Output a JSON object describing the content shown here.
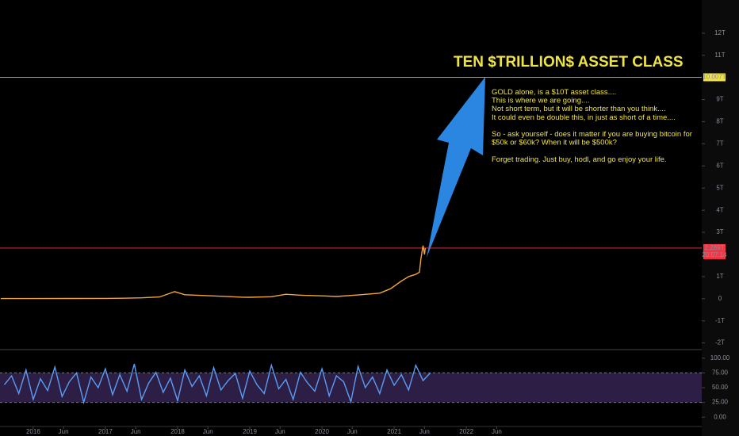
{
  "chart_data": [
    {
      "type": "line",
      "annotation": {
        "title": "TEN $TRILLION$ ASSET CLASS",
        "paragraphs": [
          [
            "GOLD alone, is a $10T asset class....",
            "This is where we are going....",
            "Not short term, but it will be shorter than you think....",
            "It could even be double this, in just as short of a time...."
          ],
          [
            "So - ask yourself - does it matter if you are buying bitcoin for",
            "$50k or $60k? When it will be $500k?"
          ],
          [
            "Forget trading. Just buy, hodl, and go enjoy your life."
          ]
        ]
      },
      "x": [
        2015.55,
        2016.0,
        2016.5,
        2017.0,
        2017.25,
        2017.5,
        2017.75,
        2017.96,
        2018.1,
        2018.3,
        2018.6,
        2018.9,
        2019.0,
        2019.3,
        2019.5,
        2019.75,
        2020.0,
        2020.2,
        2020.5,
        2020.8,
        2020.95,
        2021.1,
        2021.2,
        2021.3,
        2021.35,
        2021.37,
        2021.4,
        2021.42,
        2021.43
      ],
      "values": [
        0.006,
        0.007,
        0.011,
        0.016,
        0.02,
        0.04,
        0.08,
        0.32,
        0.18,
        0.15,
        0.11,
        0.07,
        0.065,
        0.09,
        0.2,
        0.15,
        0.13,
        0.1,
        0.17,
        0.25,
        0.45,
        0.8,
        1.0,
        1.1,
        1.2,
        1.8,
        2.4,
        2.0,
        2.289
      ],
      "color": "#f0a63a",
      "xlim": [
        2015.54,
        2025.26
      ],
      "xticks": [
        2016,
        {
          "value": 2016.42,
          "label": "Jun"
        },
        2017,
        {
          "value": 2017.42,
          "label": "Jun"
        },
        2018,
        {
          "value": 2018.42,
          "label": "Jun"
        },
        2019,
        {
          "value": 2019.42,
          "label": "Jun"
        },
        2020,
        {
          "value": 2020.42,
          "label": "Jun"
        },
        2021,
        {
          "value": 2021.42,
          "label": "Jun"
        },
        2022,
        {
          "value": 2022.42,
          "label": "Jun"
        }
      ],
      "ylim": [
        -2.3,
        13.5
      ],
      "yticks": [
        {
          "value": -2,
          "label": "-2T"
        },
        {
          "value": -1,
          "label": "-1T"
        },
        0,
        {
          "value": 1,
          "label": "1T"
        },
        {
          "value": 3,
          "label": "3T"
        },
        {
          "value": 4,
          "label": "4T"
        },
        {
          "value": 5,
          "label": "5T"
        },
        {
          "value": 6,
          "label": "6T"
        },
        {
          "value": 7,
          "label": "7T"
        },
        {
          "value": 8,
          "label": "8T"
        },
        {
          "value": 9,
          "label": "9T"
        },
        {
          "value": 11,
          "label": "11T"
        },
        {
          "value": 12,
          "label": "12T"
        }
      ],
      "hlines": [
        {
          "value": 10.007,
          "label": "10.007T",
          "color": "#f0e442"
        },
        {
          "value": 2.289,
          "label": "2.289T",
          "color": "#f23645"
        }
      ],
      "countdown": "20:07:14"
    },
    {
      "type": "line",
      "x": [
        2015.6,
        2015.7,
        2015.8,
        2015.9,
        2016.0,
        2016.1,
        2016.2,
        2016.3,
        2016.4,
        2016.5,
        2016.6,
        2016.7,
        2016.8,
        2016.9,
        2017.0,
        2017.1,
        2017.2,
        2017.3,
        2017.4,
        2017.5,
        2017.6,
        2017.7,
        2017.8,
        2017.9,
        2018.0,
        2018.1,
        2018.2,
        2018.3,
        2018.4,
        2018.5,
        2018.6,
        2018.7,
        2018.8,
        2018.9,
        2019.0,
        2019.1,
        2019.2,
        2019.3,
        2019.4,
        2019.5,
        2019.6,
        2019.7,
        2019.8,
        2019.9,
        2020.0,
        2020.1,
        2020.2,
        2020.3,
        2020.4,
        2020.5,
        2020.6,
        2020.7,
        2020.8,
        2020.9,
        2021.0,
        2021.1,
        2021.2,
        2021.3,
        2021.4,
        2021.5
      ],
      "values": [
        55,
        70,
        40,
        80,
        30,
        65,
        45,
        85,
        35,
        60,
        75,
        25,
        68,
        50,
        82,
        38,
        72,
        44,
        90,
        30,
        58,
        76,
        42,
        66,
        28,
        80,
        52,
        70,
        36,
        84,
        46,
        62,
        74,
        32,
        78,
        55,
        40,
        88,
        48,
        64,
        30,
        76,
        58,
        44,
        82,
        36,
        70,
        60,
        26,
        86,
        50,
        68,
        40,
        80,
        54,
        72,
        46,
        88,
        62,
        75
      ],
      "color": "#5b9cf6",
      "band": [
        25,
        75
      ],
      "ylim": [
        -15.8,
        114.5
      ],
      "yticks": [
        {
          "value": 0,
          "label": "0.00"
        },
        {
          "value": 25,
          "label": "25.00"
        },
        {
          "value": 50,
          "label": "50.00"
        },
        {
          "value": 75,
          "label": "75.00"
        },
        {
          "value": 100,
          "label": "100.00"
        }
      ]
    }
  ]
}
